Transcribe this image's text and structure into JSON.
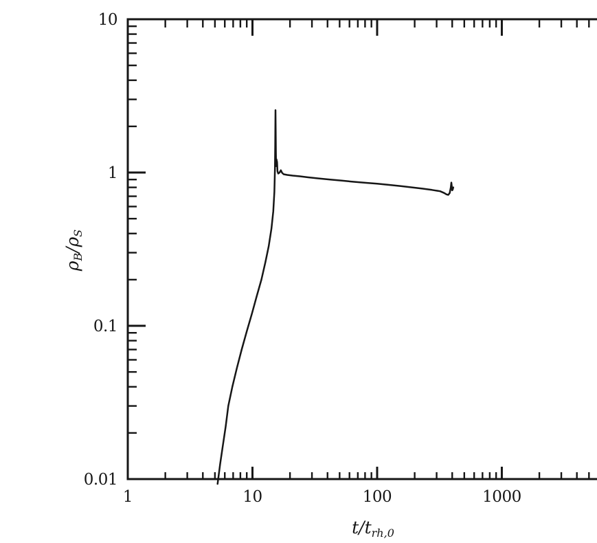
{
  "figure": {
    "background": "#ffffff",
    "ink_color": "#161616",
    "description": "scanned log-log line plot of baryon-to-star density ratio versus time"
  },
  "chart_data": {
    "type": "line",
    "title": "",
    "xlabel": "t/t_rh,0",
    "xlabel_parts": {
      "first": "t",
      "slash": "/",
      "second": "t",
      "subscript": "rh,0"
    },
    "ylabel": "rho_B/rho_S",
    "ylabel_parts": {
      "numerator": "ρ",
      "numerator_sub": "B",
      "slash": "/",
      "denominator": "ρ",
      "denominator_sub": "S"
    },
    "grid": false,
    "legend": null,
    "x_axis": {
      "scale": "log",
      "min": 1,
      "max": 5800,
      "major_ticks": [
        1,
        10,
        100,
        1000
      ],
      "tick_labels": [
        "1",
        "10",
        "100",
        "1000"
      ]
    },
    "y_axis": {
      "scale": "log",
      "min": 0.01,
      "max": 10,
      "major_ticks": [
        0.01,
        0.1,
        1,
        10
      ],
      "tick_labels": [
        "0.01",
        "0.1",
        "1",
        "10"
      ]
    },
    "series": [
      {
        "name": "rho_B/rho_S vs t/t_rh,0",
        "points": [
          [
            5.25,
            0.0093
          ],
          [
            5.5,
            0.0125
          ],
          [
            5.75,
            0.016
          ],
          [
            6.1,
            0.022
          ],
          [
            6.4,
            0.03
          ],
          [
            6.9,
            0.04
          ],
          [
            7.5,
            0.053
          ],
          [
            8.2,
            0.07
          ],
          [
            9.0,
            0.092
          ],
          [
            9.9,
            0.12
          ],
          [
            10.8,
            0.155
          ],
          [
            11.8,
            0.2
          ],
          [
            12.7,
            0.26
          ],
          [
            13.5,
            0.33
          ],
          [
            14.2,
            0.43
          ],
          [
            14.7,
            0.56
          ],
          [
            15.0,
            0.75
          ],
          [
            15.15,
            1.05
          ],
          [
            15.22,
            1.5
          ],
          [
            15.26,
            2.0
          ],
          [
            15.3,
            2.55
          ],
          [
            15.36,
            1.9
          ],
          [
            15.42,
            1.35
          ],
          [
            15.48,
            1.1
          ],
          [
            15.58,
            1.22
          ],
          [
            15.75,
            1.17
          ],
          [
            15.88,
            1.02
          ],
          [
            16.1,
            0.985
          ],
          [
            16.5,
            1.0
          ],
          [
            16.9,
            1.035
          ],
          [
            17.3,
            0.995
          ],
          [
            17.8,
            0.975
          ],
          [
            19,
            0.965
          ],
          [
            21,
            0.955
          ],
          [
            24,
            0.945
          ],
          [
            28,
            0.93
          ],
          [
            34,
            0.915
          ],
          [
            42,
            0.9
          ],
          [
            52,
            0.885
          ],
          [
            65,
            0.87
          ],
          [
            80,
            0.857
          ],
          [
            100,
            0.845
          ],
          [
            125,
            0.83
          ],
          [
            155,
            0.815
          ],
          [
            190,
            0.8
          ],
          [
            230,
            0.785
          ],
          [
            275,
            0.77
          ],
          [
            320,
            0.755
          ],
          [
            345,
            0.735
          ],
          [
            360,
            0.72
          ],
          [
            372,
            0.715
          ],
          [
            382,
            0.735
          ],
          [
            390,
            0.8
          ],
          [
            394,
            0.86
          ],
          [
            398,
            0.8
          ],
          [
            400,
            0.765
          ],
          [
            404,
            0.775
          ],
          [
            408,
            0.8
          ]
        ]
      }
    ]
  }
}
